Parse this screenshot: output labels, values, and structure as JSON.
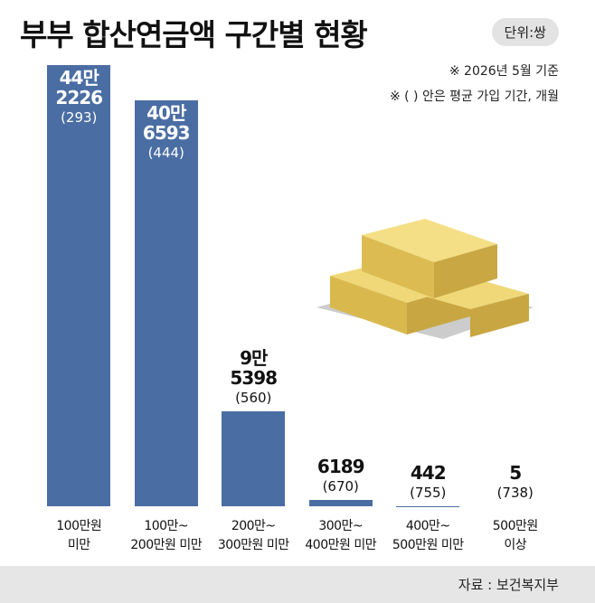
{
  "chart_data": {
    "type": "bar",
    "title": "부부 합산연금액 구간별 현황",
    "unit": "단위:쌍",
    "notes": [
      "※ 2026년 5월 기준",
      "※ ( ) 안은 평균 가입 기간, 개월"
    ],
    "categories": [
      "100만원\n미만",
      "100만~\n200만원 미만",
      "200만~\n300만원 미만",
      "300만~\n400만원 미만",
      "400만~\n500만원 미만",
      "500만원\n이상"
    ],
    "values": [
      442226,
      406593,
      95398,
      6189,
      442,
      5
    ],
    "value_labels": [
      "44만\n2226",
      "40만\n6593",
      "9만\n5398",
      "6189",
      "442",
      "5"
    ],
    "month_labels": [
      "(293)",
      "(444)",
      "(560)",
      "(670)",
      "(755)",
      "(738)"
    ],
    "color": "#4a6da3",
    "source": "자료 : 보건복지부"
  }
}
